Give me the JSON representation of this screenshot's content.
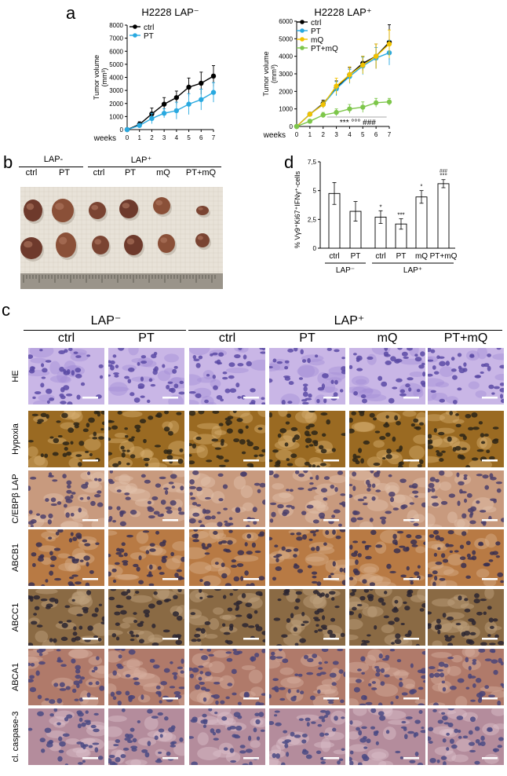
{
  "panels": {
    "a": "a",
    "b": "b",
    "c": "c",
    "d": "d"
  },
  "chart_data": [
    {
      "type": "line",
      "title": "H2228 LAP⁻",
      "xlabel": "weeks",
      "ylabel": "Tumor volume (mm³)",
      "x": [
        0,
        1,
        2,
        3,
        4,
        5,
        6,
        7
      ],
      "ylim": [
        0,
        8000
      ],
      "yticks": [
        0,
        1000,
        2000,
        3000,
        4000,
        5000,
        6000,
        7000,
        8000
      ],
      "series": [
        {
          "name": "ctrl",
          "color": "#000000",
          "values": [
            0,
            400,
            1200,
            1950,
            2450,
            3250,
            3550,
            4100
          ],
          "err": [
            0,
            200,
            450,
            500,
            500,
            700,
            850,
            800
          ]
        },
        {
          "name": "PT",
          "color": "#29a9e0",
          "values": [
            0,
            320,
            850,
            1250,
            1450,
            1950,
            2300,
            2850
          ],
          "err": [
            0,
            150,
            400,
            350,
            650,
            800,
            800,
            750
          ]
        }
      ]
    },
    {
      "type": "line",
      "title": "H2228 LAP⁺",
      "xlabel": "weeks",
      "ylabel": "Tumor volume (mm³)",
      "x": [
        0,
        1,
        2,
        3,
        4,
        5,
        6,
        7
      ],
      "ylim": [
        0,
        6000
      ],
      "yticks": [
        0,
        1000,
        2000,
        3000,
        4000,
        5000,
        6000
      ],
      "annotation": "*** °°° ###",
      "series": [
        {
          "name": "ctrl",
          "color": "#000000",
          "values": [
            0,
            700,
            1300,
            2200,
            2950,
            3600,
            4000,
            4800
          ],
          "err": [
            0,
            100,
            200,
            400,
            400,
            400,
            700,
            1000
          ]
        },
        {
          "name": "PT",
          "color": "#29a9e0",
          "values": [
            0,
            700,
            1250,
            2150,
            2850,
            3450,
            3900,
            4200
          ],
          "err": [
            0,
            100,
            200,
            400,
            400,
            500,
            600,
            700
          ]
        },
        {
          "name": "mQ",
          "color": "#f2c200",
          "values": [
            0,
            700,
            1250,
            2300,
            2950,
            3500,
            4000,
            4700
          ],
          "err": [
            0,
            100,
            200,
            450,
            450,
            500,
            700,
            800
          ]
        },
        {
          "name": "PT+mQ",
          "color": "#7dc64a",
          "values": [
            0,
            300,
            650,
            800,
            1000,
            1100,
            1350,
            1400
          ],
          "err": [
            0,
            80,
            150,
            200,
            250,
            300,
            250,
            200
          ]
        }
      ]
    },
    {
      "type": "bar",
      "ylabel": "% Vγ9⁺Ki67⁺IFNγ⁺-cells",
      "ylim": [
        0,
        7
      ],
      "yticks": [
        0,
        2.5,
        5,
        7.5
      ],
      "ytick_labels": [
        "0",
        "2,5",
        "5",
        "7,5"
      ],
      "categories": [
        "ctrl",
        "PT",
        "ctrl",
        "PT",
        "mQ",
        "PT+mQ"
      ],
      "values": [
        4.75,
        3.2,
        2.7,
        2.1,
        4.45,
        5.6
      ],
      "err": [
        0.95,
        0.85,
        0.55,
        0.45,
        0.55,
        0.35
      ],
      "marks": [
        "",
        "",
        "*",
        "***",
        "°",
        "°°°"
      ],
      "marks_top": [
        "",
        "",
        "",
        "",
        "",
        "###"
      ],
      "groups": [
        "LAP⁻",
        "LAP⁺"
      ]
    }
  ],
  "photo": {
    "groups": [
      "LAP-",
      "LAP⁺"
    ],
    "labels": [
      "ctrl",
      "PT",
      "ctrl",
      "PT",
      "mQ",
      "PT+mQ"
    ]
  },
  "histology": {
    "groups": [
      "LAP⁻",
      "LAP⁺"
    ],
    "columns": [
      "ctrl",
      "PT",
      "ctrl",
      "PT",
      "mQ",
      "PT+mQ"
    ],
    "rows": [
      {
        "label": "HE",
        "palette": [
          "#c9b6e6",
          "#5b4aa4",
          "#a48fd8"
        ]
      },
      {
        "label": "Hypoxia",
        "palette": [
          "#9a6a22",
          "#2c2418",
          "#d6b070"
        ]
      },
      {
        "label": "C/EBPβ LAP",
        "palette": [
          "#c89a7e",
          "#4a3e6a",
          "#e2c4ae"
        ]
      },
      {
        "label": "ABCB1",
        "palette": [
          "#b87a44",
          "#3a3050",
          "#d8b08c"
        ]
      },
      {
        "label": "ABCC1",
        "palette": [
          "#8a6a44",
          "#2a2430",
          "#c0a480"
        ]
      },
      {
        "label": "ABCA1",
        "palette": [
          "#b07a6a",
          "#4a4478",
          "#d6b0a0"
        ]
      },
      {
        "label": "cl. caspase-3",
        "palette": [
          "#b48c9c",
          "#4a4a84",
          "#dcc2cc"
        ]
      }
    ]
  }
}
